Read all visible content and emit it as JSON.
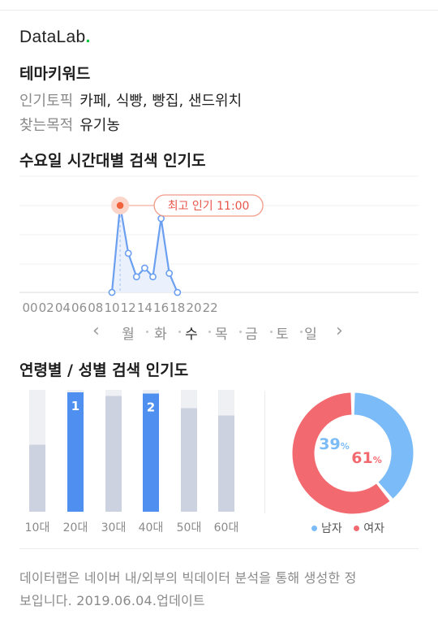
{
  "logo": {
    "text": "DataLab",
    "dot": "."
  },
  "theme": {
    "title": "테마키워드",
    "topic_label": "인기토픽",
    "topic_value": "카페, 식빵, 빵집, 샌드위치",
    "purpose_label": "찾는목적",
    "purpose_value": "유기농"
  },
  "hourly": {
    "title": "수요일 시간대별 검색 인기도",
    "peak_label": "최고 인기 11:00",
    "days": [
      "월",
      "화",
      "수",
      "목",
      "금",
      "토",
      "일"
    ],
    "active_day": "수",
    "prev_icon": "chevron-left-icon",
    "next_icon": "chevron-right-icon"
  },
  "demographic": {
    "title": "연령별 / 성별 검색 인기도"
  },
  "colors": {
    "accent_blue": "#4e8ff0",
    "bar_gray": "#ccd2df",
    "bar_bg": "#eef0f3",
    "line_blue": "#6b9ff0",
    "male": "#7bbbf7",
    "female": "#f26a6f",
    "peak": "#f0623b"
  },
  "chart_data": [
    {
      "type": "line",
      "x": [
        10,
        11,
        12,
        13,
        14,
        15,
        16,
        17,
        18
      ],
      "values": [
        0,
        100,
        45,
        18,
        28,
        18,
        85,
        22,
        0
      ],
      "xticks": [
        "00",
        "02",
        "04",
        "06",
        "08",
        "10",
        "12",
        "14",
        "16",
        "18",
        "20",
        "22"
      ],
      "xlim": [
        0,
        23
      ],
      "ylim": [
        0,
        100
      ],
      "peak_x": 11,
      "grid": true
    },
    {
      "type": "bar",
      "categories": [
        "10대",
        "20대",
        "30대",
        "40대",
        "50대",
        "60대"
      ],
      "values": [
        55,
        98,
        95,
        97,
        85,
        79
      ],
      "ylim": [
        0,
        100
      ],
      "ranks": [
        "",
        "1",
        "",
        "2",
        "",
        ""
      ],
      "highlighted": [
        false,
        true,
        false,
        true,
        false,
        false
      ]
    },
    {
      "type": "pie",
      "labels": [
        "남자",
        "여자"
      ],
      "values": [
        39,
        61
      ],
      "value_labels": [
        "39",
        "61"
      ],
      "unit": "%"
    }
  ],
  "legend": {
    "male": "남자",
    "female": "여자"
  },
  "footer": {
    "line1": "데이터랩은 네이버 내/외부의 빅데이터 분석을 통해 생성한 정",
    "line2": "보입니다.  2019.06.04.업데이트"
  }
}
